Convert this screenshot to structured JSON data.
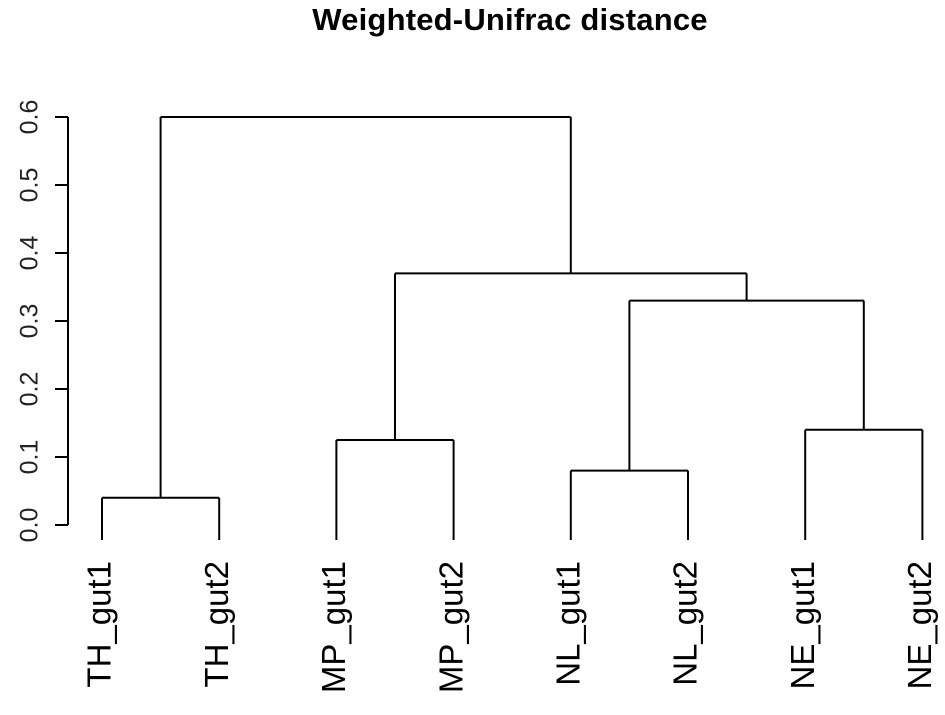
{
  "chart_data": {
    "type": "dendrogram",
    "title": "Weighted-Unifrac distance",
    "xlabel": "",
    "ylabel": "",
    "ylim": [
      0,
      0.6
    ],
    "yticks": [
      0.0,
      0.1,
      0.2,
      0.3,
      0.4,
      0.5,
      0.6
    ],
    "ytick_labels": [
      "0.0",
      "0.1",
      "0.2",
      "0.3",
      "0.4",
      "0.5",
      "0.6"
    ],
    "leaves": [
      "TH_gut1",
      "TH_gut2",
      "MP_gut1",
      "MP_gut2",
      "NL_gut1",
      "NL_gut2",
      "NE_gut1",
      "NE_gut2"
    ],
    "merges": [
      {
        "id": "TH",
        "left": "TH_gut1",
        "right": "TH_gut2",
        "height": 0.04
      },
      {
        "id": "MP",
        "left": "MP_gut1",
        "right": "MP_gut2",
        "height": 0.125
      },
      {
        "id": "NL",
        "left": "NL_gut1",
        "right": "NL_gut2",
        "height": 0.08
      },
      {
        "id": "NE",
        "left": "NE_gut1",
        "right": "NE_gut2",
        "height": 0.14
      },
      {
        "id": "NLNE",
        "left": "NL",
        "right": "NE",
        "height": 0.33
      },
      {
        "id": "MPNLNE",
        "left": "MP",
        "right": "NLNE",
        "height": 0.37
      },
      {
        "id": "ROOT",
        "left": "TH",
        "right": "MPNLNE",
        "height": 0.6
      }
    ],
    "line_color": "#000000",
    "background": "#ffffff"
  }
}
